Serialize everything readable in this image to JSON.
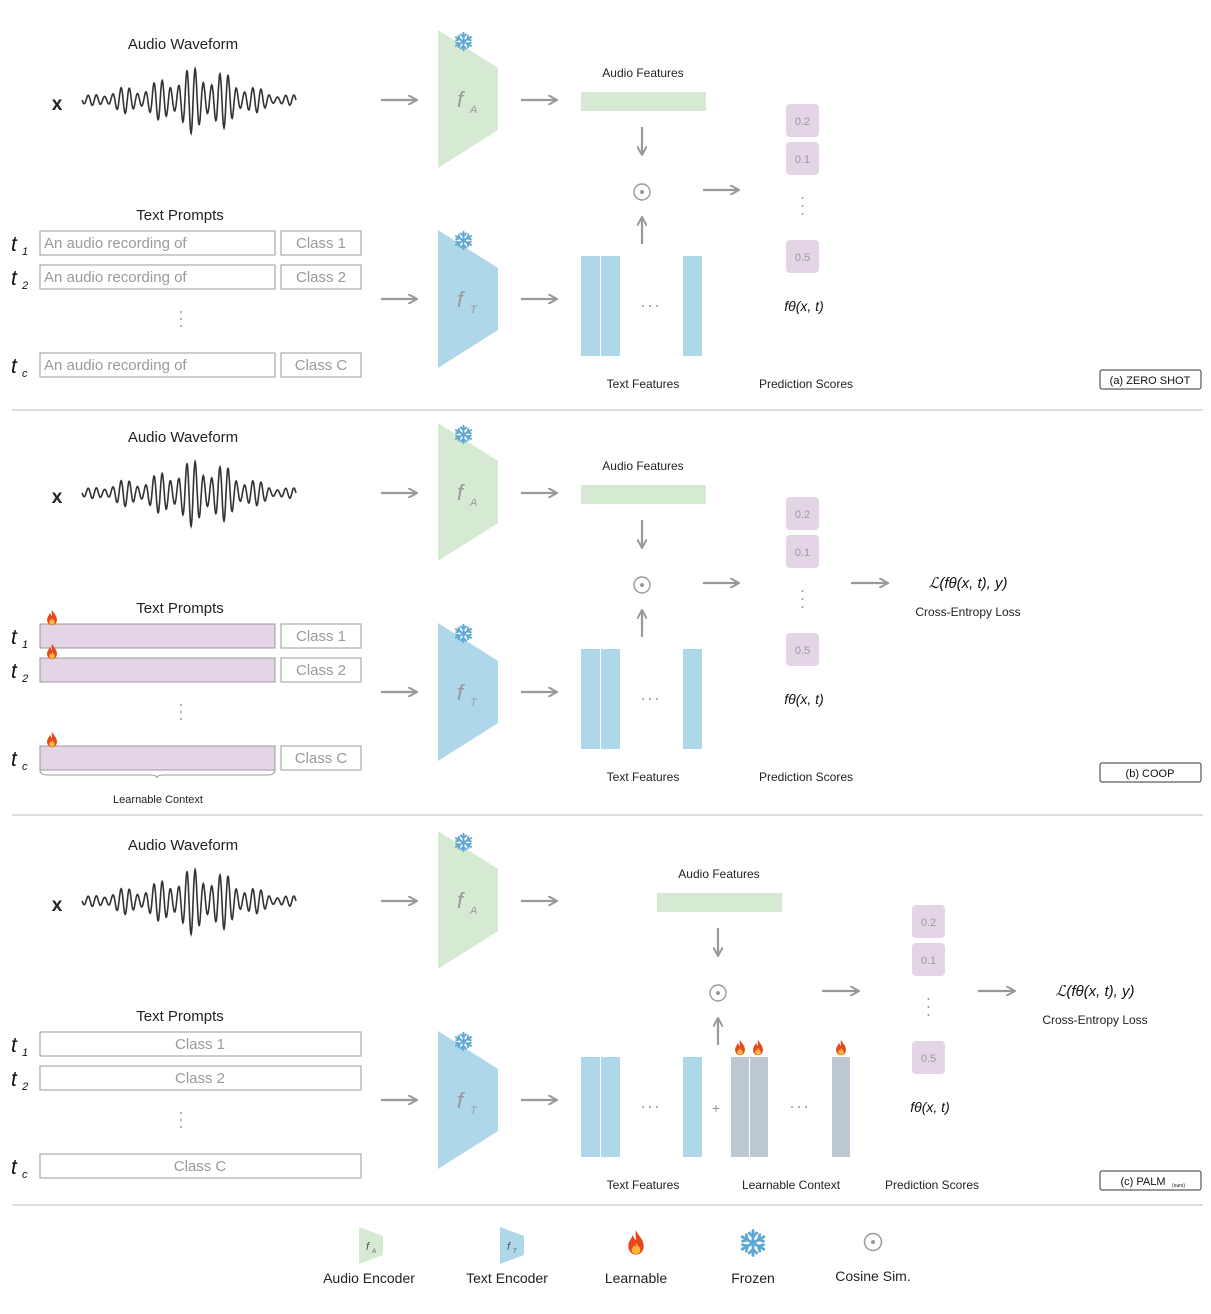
{
  "colors": {
    "audio_encoder": "#d6e9d2",
    "text_encoder": "#aed8ea",
    "audio_feature": "#d6e9d2",
    "text_feature": "#aed8ea",
    "learnable_prompt": "#e3d5e6",
    "score_box": "#e3d5e6",
    "learnable_context": "#bdc8d3",
    "arrow": "#999999",
    "flame": "#e8461c",
    "snowflake": "#5fa8d3"
  },
  "panels": [
    {
      "label": "(a) ZERO SHOT",
      "waveform_title": "Audio Waveform",
      "x_symbol": "x",
      "encoder_audio": "f",
      "encoder_audio_sub": "A",
      "encoder_text": "f",
      "encoder_text_sub": "T",
      "audio_features": "Audio Features",
      "text_features": "Text Features",
      "text_prompts_title": "Text Prompts",
      "prompts": [
        {
          "t": "t",
          "sub": "1",
          "ctx": "An audio recording of",
          "cls": "Class 1"
        },
        {
          "t": "t",
          "sub": "2",
          "ctx": "An audio recording of",
          "cls": "Class 2"
        },
        {
          "t": "t",
          "sub": "c",
          "ctx": "An audio recording of",
          "cls": "Class C"
        }
      ],
      "scores": [
        "0.2",
        "0.1",
        "0.5"
      ],
      "prediction_formula": "fθ(x, t)",
      "prediction_scores": "Prediction Scores"
    },
    {
      "label": "(b)   COOP",
      "waveform_title": "Audio Waveform",
      "x_symbol": "x",
      "encoder_audio": "f",
      "encoder_audio_sub": "A",
      "encoder_text": "f",
      "encoder_text_sub": "T",
      "audio_features": "Audio Features",
      "text_features": "Text Features",
      "text_prompts_title": "Text Prompts",
      "prompts": [
        {
          "t": "t",
          "sub": "1",
          "cls": "Class 1"
        },
        {
          "t": "t",
          "sub": "2",
          "cls": "Class 2"
        },
        {
          "t": "t",
          "sub": "c",
          "cls": "Class C"
        }
      ],
      "learnable_context": "Learnable Context",
      "scores": [
        "0.2",
        "0.1",
        "0.5"
      ],
      "prediction_formula": "fθ(x, t)",
      "prediction_scores": "Prediction Scores",
      "loss_formula": "ℒ(fθ(x, t), y)",
      "loss_label": "Cross-Entropy Loss"
    },
    {
      "label": "(c)   PALM",
      "label_sub": "(ours)",
      "waveform_title": "Audio Waveform",
      "x_symbol": "x",
      "encoder_audio": "f",
      "encoder_audio_sub": "A",
      "encoder_text": "f",
      "encoder_text_sub": "T",
      "audio_features": "Audio Features",
      "text_features": "Text Features",
      "learnable_context": "Learnable Context",
      "text_prompts_title": "Text Prompts",
      "prompts": [
        {
          "t": "t",
          "sub": "1",
          "cls": "Class 1"
        },
        {
          "t": "t",
          "sub": "2",
          "cls": "Class 2"
        },
        {
          "t": "t",
          "sub": "c",
          "cls": "Class C"
        }
      ],
      "plus": "+",
      "scores": [
        "0.2",
        "0.1",
        "0.5"
      ],
      "prediction_formula": "fθ(x, t)",
      "prediction_scores": "Prediction Scores",
      "loss_formula": "ℒ(fθ(x, t), y)",
      "loss_label": "Cross-Entropy Loss"
    }
  ],
  "legend": {
    "audio_encoder": "Audio Encoder",
    "audio_encoder_icon": "f",
    "audio_encoder_icon_sub": "A",
    "text_encoder": "Text Encoder",
    "text_encoder_icon": "f",
    "text_encoder_icon_sub": "T",
    "learnable": "Learnable",
    "frozen": "Frozen",
    "cosine": "Cosine Sim."
  }
}
